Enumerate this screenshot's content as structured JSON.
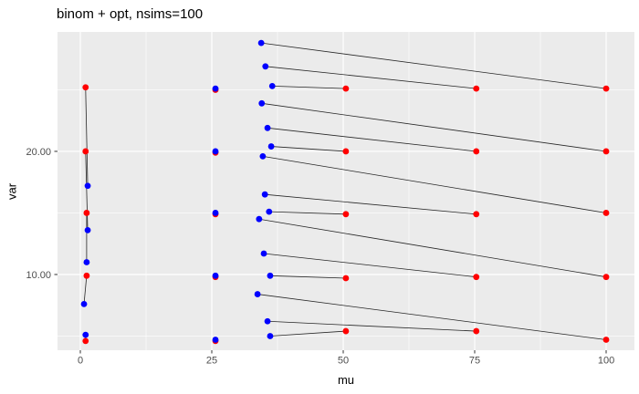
{
  "chart_data": {
    "type": "scatter",
    "title": "binom + opt, nsims=100",
    "xlabel": "mu",
    "ylabel": "var",
    "xlim": [
      -4.34,
      105.38
    ],
    "ylim": [
      3.85,
      29.7
    ],
    "grid": true,
    "legend": false,
    "x_ticks": {
      "values": [
        0,
        25,
        50,
        75,
        100
      ],
      "labels": [
        "0",
        "25",
        "50",
        "75",
        "100"
      ]
    },
    "y_ticks": {
      "values": [
        10,
        20
      ],
      "labels": [
        "10.00",
        "20.00"
      ]
    },
    "x_minor_ticks": [
      12.5,
      37.5,
      62.5,
      87.5
    ],
    "y_minor_ticks": [
      5,
      15,
      25
    ],
    "series": [
      {
        "name": "red-points",
        "color": "#FF0000",
        "points": [
          [
            1.0,
            25.2
          ],
          [
            1.0,
            20.0
          ],
          [
            1.2,
            15.0
          ],
          [
            1.2,
            9.9
          ],
          [
            1.0,
            4.6
          ],
          [
            25.7,
            25.0
          ],
          [
            25.7,
            19.9
          ],
          [
            25.7,
            14.9
          ],
          [
            25.7,
            9.8
          ],
          [
            25.7,
            4.6
          ],
          [
            50.5,
            25.1
          ],
          [
            50.5,
            20.0
          ],
          [
            50.5,
            14.9
          ],
          [
            50.5,
            9.7
          ],
          [
            50.5,
            5.4
          ],
          [
            75.3,
            25.1
          ],
          [
            75.3,
            20.0
          ],
          [
            75.3,
            14.9
          ],
          [
            75.3,
            9.8
          ],
          [
            75.3,
            5.4
          ],
          [
            100.0,
            25.1
          ],
          [
            100.0,
            20.0
          ],
          [
            100.0,
            15.0
          ],
          [
            100.0,
            9.8
          ],
          [
            100.0,
            4.7
          ]
        ]
      },
      {
        "name": "blue-points",
        "color": "#0000FF",
        "points": [
          [
            1.4,
            17.2
          ],
          [
            1.4,
            13.6
          ],
          [
            1.2,
            11.0
          ],
          [
            0.7,
            7.6
          ],
          [
            1.0,
            5.1
          ],
          [
            25.7,
            25.1
          ],
          [
            25.7,
            20.0
          ],
          [
            25.7,
            15.0
          ],
          [
            25.7,
            9.9
          ],
          [
            25.7,
            4.7
          ],
          [
            34.4,
            28.8
          ],
          [
            35.2,
            26.9
          ],
          [
            36.5,
            25.3
          ],
          [
            34.5,
            23.9
          ],
          [
            35.6,
            21.9
          ],
          [
            36.3,
            20.4
          ],
          [
            34.7,
            19.6
          ],
          [
            35.1,
            16.5
          ],
          [
            35.9,
            15.1
          ],
          [
            34.0,
            14.5
          ],
          [
            34.9,
            11.7
          ],
          [
            36.1,
            9.9
          ],
          [
            33.7,
            8.4
          ],
          [
            35.6,
            6.2
          ],
          [
            36.1,
            5.0
          ]
        ]
      }
    ],
    "segments": [
      [
        1.0,
        25.2,
        1.4,
        17.2
      ],
      [
        1.0,
        20.0,
        1.4,
        13.6
      ],
      [
        1.2,
        15.0,
        1.2,
        11.0
      ],
      [
        1.2,
        9.9,
        0.7,
        7.6
      ],
      [
        1.0,
        4.6,
        1.0,
        5.1
      ],
      [
        34.4,
        28.8,
        100.0,
        25.1
      ],
      [
        35.2,
        26.9,
        75.3,
        25.1
      ],
      [
        36.5,
        25.3,
        50.5,
        25.1
      ],
      [
        34.5,
        23.9,
        100.0,
        20.0
      ],
      [
        35.6,
        21.9,
        75.3,
        20.0
      ],
      [
        36.3,
        20.4,
        50.5,
        20.0
      ],
      [
        34.7,
        19.6,
        100.0,
        15.0
      ],
      [
        35.1,
        16.5,
        75.3,
        14.9
      ],
      [
        35.9,
        15.1,
        50.5,
        14.9
      ],
      [
        34.0,
        14.5,
        100.0,
        9.8
      ],
      [
        34.9,
        11.7,
        75.3,
        9.8
      ],
      [
        36.1,
        9.9,
        50.5,
        9.7
      ],
      [
        33.7,
        8.4,
        100.0,
        4.7
      ],
      [
        35.6,
        6.2,
        75.3,
        5.4
      ],
      [
        36.1,
        5.0,
        50.5,
        5.4
      ]
    ],
    "colors": {
      "background": "#FFFFFF",
      "panel_bg": "#EBEBEB",
      "grid_major": "#FFFFFF",
      "grid_minor": "#FFFFFF",
      "segment": "#262626",
      "tick_mark": "#333333",
      "tick_text": "#4D4D4D",
      "axis_text": "#000000"
    }
  }
}
